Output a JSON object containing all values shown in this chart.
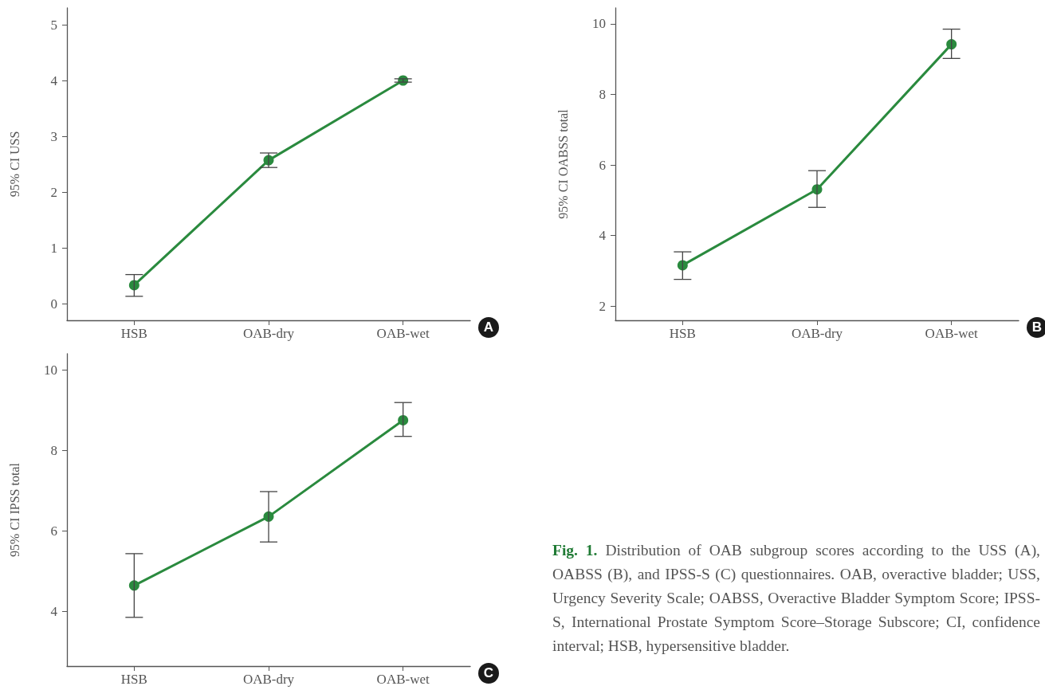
{
  "chart_data": [
    {
      "type": "line",
      "ylabel": "95% CI USS",
      "categories": [
        "HSB",
        "OAB-dry",
        "OAB-wet"
      ],
      "ylim": [
        -0.3,
        5.3
      ],
      "yticks": [
        0,
        1,
        2,
        3,
        4,
        5
      ],
      "marker": "circle",
      "grid": false,
      "series": [
        {
          "color": "#2a8a3e",
          "values": [
            0.33,
            2.57,
            4.0
          ],
          "errors": [
            [
              0.13,
              0.52
            ],
            [
              2.44,
              2.7
            ],
            [
              3.97,
              4.03
            ]
          ]
        }
      ],
      "annotations": [
        "A"
      ]
    },
    {
      "type": "line",
      "ylabel": "95% CI OABSS total",
      "categories": [
        "HSB",
        "OAB-dry",
        "OAB-wet"
      ],
      "ylim": [
        1.6,
        10.45
      ],
      "yticks": [
        2,
        4,
        6,
        8,
        10
      ],
      "marker": "circle",
      "grid": false,
      "series": [
        {
          "color": "#2a8a3e",
          "values": [
            3.16,
            5.31,
            9.42
          ],
          "errors": [
            [
              2.76,
              3.54
            ],
            [
              4.8,
              5.84
            ],
            [
              9.02,
              9.85
            ]
          ]
        }
      ],
      "annotations": [
        "B"
      ]
    },
    {
      "type": "line",
      "ylabel": "95% CI IPSS total",
      "categories": [
        "HSB",
        "OAB-dry",
        "OAB-wet"
      ],
      "ylim": [
        2.65,
        10.4
      ],
      "yticks": [
        4,
        6,
        8,
        10
      ],
      "marker": "circle",
      "grid": false,
      "series": [
        {
          "color": "#2a8a3e",
          "values": [
            4.65,
            6.36,
            8.75
          ],
          "errors": [
            [
              3.86,
              5.44
            ],
            [
              5.73,
              6.98
            ],
            [
              8.35,
              9.19
            ]
          ]
        }
      ],
      "annotations": [
        "C",
        "Fig. 1.",
        "Distribution of OAB subgroup scores according to the USS (A), OABSS (B), and IPSS-S (C) questionnaires. OAB, overactive bladder; USS, Urgency Severity Scale; OABSS, Overactive Bladder Symptom Score; IPSS-S, International Prostate Symptom Score–Storage Subscore; CI, confidence interval; HSB, hypersensitive bladder."
      ]
    }
  ]
}
